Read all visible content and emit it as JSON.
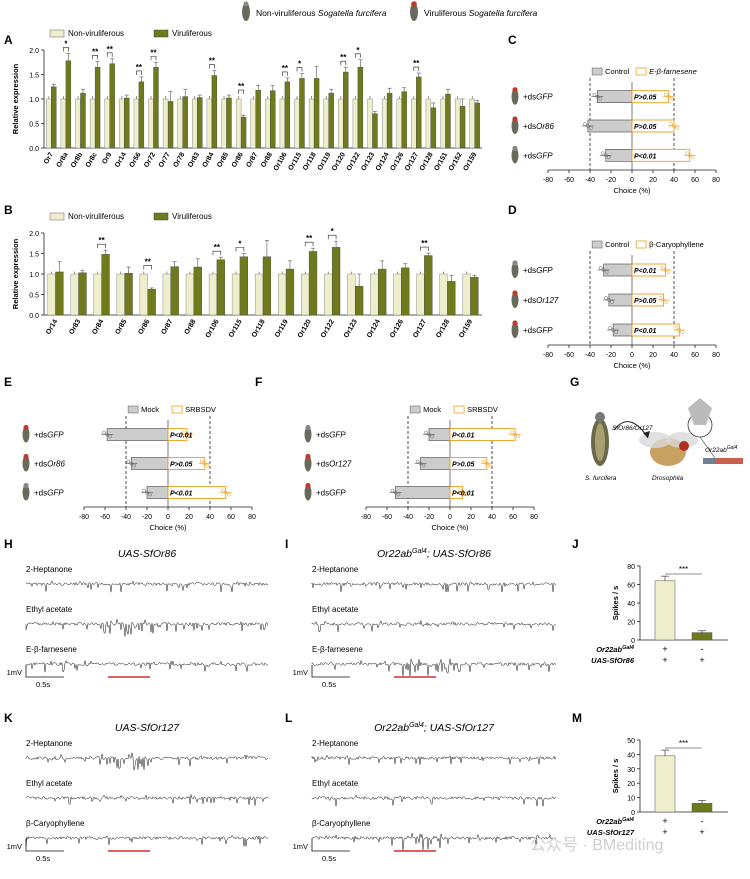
{
  "legend_top": {
    "non_viruliferous": "Non-viruliferous",
    "viruliferous": "Viruliferous",
    "species": "Sogatella furcifera"
  },
  "colors": {
    "light": "#eeeecc",
    "dark": "#6f7a1c",
    "grey": "#cccccc",
    "orange": "#f0a020"
  },
  "panels": {
    "A": "A",
    "B": "B",
    "C": "C",
    "D": "D",
    "E": "E",
    "F": "F",
    "G": "G",
    "H": "H",
    "I": "I",
    "J": "J",
    "K": "K",
    "L": "L",
    "M": "M"
  },
  "chart_data": [
    {
      "id": "A",
      "type": "bar",
      "ylabel": "Relative expression",
      "ylim": [
        0,
        2.0
      ],
      "yticks": [
        "0.0",
        "0.5",
        "1.0",
        "1.5",
        "2.0"
      ],
      "legend": [
        "Non-viruliferous",
        "Viruliferous"
      ],
      "categories": [
        "Or7",
        "Or8a",
        "Or8b",
        "Or8c",
        "Or9",
        "Or14",
        "Or56",
        "Or72",
        "Or77",
        "Or78",
        "Or83",
        "Or84",
        "Or85",
        "Or86",
        "Or87",
        "Or88",
        "Or106",
        "Or115",
        "Or118",
        "Or119",
        "Or120",
        "Or122",
        "Or123",
        "Or124",
        "Or126",
        "Or127",
        "Or128",
        "Or151",
        "Or152",
        "Or159"
      ],
      "series": [
        {
          "name": "Non-viruliferous",
          "values": [
            1,
            1,
            1,
            1,
            1,
            1,
            1,
            1,
            1,
            1,
            1,
            1,
            1,
            1,
            1,
            1,
            1,
            1,
            1,
            1,
            1,
            1,
            1,
            1,
            1,
            1,
            1,
            1,
            1,
            1
          ]
        },
        {
          "name": "Viruliferous",
          "values": [
            1.25,
            1.78,
            1.12,
            1.65,
            1.72,
            1.02,
            1.35,
            1.65,
            0.95,
            1.05,
            1.03,
            1.48,
            1.02,
            0.63,
            1.18,
            1.17,
            1.35,
            1.42,
            1.42,
            1.12,
            1.55,
            1.65,
            0.7,
            1.12,
            1.15,
            1.45,
            0.82,
            1.1,
            0.85,
            0.92
          ]
        }
      ],
      "errors": [
        0.05,
        0.15,
        0.08,
        0.12,
        0.1,
        0.06,
        0.1,
        0.1,
        0.2,
        0.15,
        0.05,
        0.1,
        0.06,
        0.04,
        0.1,
        0.1,
        0.08,
        0.1,
        0.25,
        0.08,
        0.1,
        0.15,
        0.05,
        0.1,
        0.08,
        0.08,
        0.1,
        0.1,
        0.15,
        0.05
      ],
      "significance": [
        {
          "category": "Or8a",
          "label": "*"
        },
        {
          "category": "Or8c",
          "label": "**"
        },
        {
          "category": "Or9",
          "label": "**"
        },
        {
          "category": "Or56",
          "label": "**"
        },
        {
          "category": "Or72",
          "label": "**"
        },
        {
          "category": "Or84",
          "label": "**"
        },
        {
          "category": "Or86",
          "label": "**"
        },
        {
          "category": "Or106",
          "label": "**"
        },
        {
          "category": "Or115",
          "label": "*"
        },
        {
          "category": "Or120",
          "label": "**"
        },
        {
          "category": "Or122",
          "label": "*"
        },
        {
          "category": "Or127",
          "label": "**"
        }
      ]
    },
    {
      "id": "B",
      "type": "bar",
      "ylabel": "Relative expression",
      "ylim": [
        0,
        2.0
      ],
      "yticks": [
        "0.0",
        "0.5",
        "1.0",
        "1.5",
        "2.0"
      ],
      "legend": [
        "Non-viruliferous",
        "Viruliferous"
      ],
      "categories": [
        "Or14",
        "Or83",
        "Or84",
        "Or85",
        "Or86",
        "Or87",
        "Or88",
        "Or106",
        "Or115",
        "Or118",
        "Or119",
        "Or120",
        "Or122",
        "Or123",
        "Or124",
        "Or126",
        "Or127",
        "Or128",
        "Or159"
      ],
      "series": [
        {
          "name": "Non-viruliferous",
          "values": [
            1,
            1,
            1,
            1,
            1,
            1,
            1,
            1,
            1,
            1,
            1,
            1,
            1,
            1,
            1,
            1,
            1,
            1,
            1
          ]
        },
        {
          "name": "Viruliferous",
          "values": [
            1.05,
            1.03,
            1.48,
            1.02,
            0.63,
            1.18,
            1.17,
            1.35,
            1.42,
            1.42,
            1.12,
            1.55,
            1.65,
            0.7,
            1.12,
            1.15,
            1.45,
            0.82,
            0.92
          ]
        }
      ],
      "errors": [
        0.25,
        0.05,
        0.1,
        0.15,
        0.03,
        0.12,
        0.2,
        0.06,
        0.08,
        0.4,
        0.2,
        0.08,
        0.15,
        0.3,
        0.2,
        0.1,
        0.06,
        0.15,
        0.05
      ],
      "significance": [
        {
          "category": "Or84",
          "label": "**"
        },
        {
          "category": "Or86",
          "label": "**"
        },
        {
          "category": "Or106",
          "label": "**"
        },
        {
          "category": "Or115",
          "label": "*"
        },
        {
          "category": "Or120",
          "label": "**"
        },
        {
          "category": "Or122",
          "label": "*"
        },
        {
          "category": "Or127",
          "label": "**"
        }
      ]
    },
    {
      "id": "C",
      "type": "bar",
      "orientation": "horizontal",
      "xlabel": "Choice (%)",
      "xlim": [
        -80,
        80
      ],
      "xticks": [
        "-80",
        "-60",
        "-40",
        "-20",
        "0",
        "20",
        "40",
        "60",
        "80"
      ],
      "legend": [
        "Control",
        "E-β-farnesene"
      ],
      "rows": [
        {
          "label_prefix": "+ds",
          "label_gene": "GFP",
          "left": -33,
          "right": 35,
          "p": "P>0.05"
        },
        {
          "label_prefix": "+ds",
          "label_gene": "Or86",
          "left": -42,
          "right": 40,
          "p": "P>0.05"
        },
        {
          "label_prefix": "+ds",
          "label_gene": "GFP",
          "left": -25,
          "right": 55,
          "p": "P<0.01"
        }
      ],
      "reference_lines": [
        -40,
        40
      ]
    },
    {
      "id": "D",
      "type": "bar",
      "orientation": "horizontal",
      "xlabel": "Choice (%)",
      "xlim": [
        -80,
        80
      ],
      "xticks": [
        "-80",
        "-60",
        "-40",
        "-20",
        "0",
        "20",
        "40",
        "60",
        "80"
      ],
      "legend": [
        "Control",
        "β-Caryophyllene"
      ],
      "rows": [
        {
          "label_prefix": "+ds",
          "label_gene": "GFP",
          "left": -27,
          "right": 32,
          "p": "P<0.01"
        },
        {
          "label_prefix": "+ds",
          "label_gene": "Or127",
          "left": -22,
          "right": 30,
          "p": "P>0.05"
        },
        {
          "label_prefix": "+ds",
          "label_gene": "GFP",
          "left": -18,
          "right": 45,
          "p": "P<0.01"
        }
      ],
      "reference_lines": [
        -40,
        40
      ]
    },
    {
      "id": "E",
      "type": "bar",
      "orientation": "horizontal",
      "xlabel": "Choice (%)",
      "xlim": [
        -80,
        80
      ],
      "xticks": [
        "-80",
        "-60",
        "-40",
        "-20",
        "0",
        "20",
        "40",
        "60",
        "80"
      ],
      "legend": [
        "Mock",
        "SRBSDV"
      ],
      "rows": [
        {
          "label_prefix": "+ds",
          "label_gene": "GFP",
          "left": -58,
          "right": 18,
          "p": "P<0.01"
        },
        {
          "label_prefix": "+ds",
          "label_gene": "Or86",
          "left": -35,
          "right": 35,
          "p": "P>0.05"
        },
        {
          "label_prefix": "+ds",
          "label_gene": "GFP",
          "left": -20,
          "right": 55,
          "p": "P<0.01"
        }
      ],
      "reference_lines": [
        -40,
        40
      ]
    },
    {
      "id": "F",
      "type": "bar",
      "orientation": "horizontal",
      "xlabel": "Choice (%)",
      "xlim": [
        -80,
        80
      ],
      "xticks": [
        "-80",
        "-60",
        "-40",
        "-20",
        "0",
        "20",
        "40",
        "60",
        "80"
      ],
      "legend": [
        "Mock",
        "SRBSDV"
      ],
      "rows": [
        {
          "label_prefix": "+ds",
          "label_gene": "GFP",
          "left": -20,
          "right": 62,
          "p": "P<0.01"
        },
        {
          "label_prefix": "+ds",
          "label_gene": "Or127",
          "left": -28,
          "right": 35,
          "p": "P>0.05"
        },
        {
          "label_prefix": "+ds",
          "label_gene": "GFP",
          "left": -52,
          "right": 12,
          "p": "P<0.01"
        }
      ],
      "reference_lines": [
        -40,
        40
      ]
    },
    {
      "id": "J",
      "type": "bar",
      "ylabel": "Spikes / s",
      "ylim": [
        0,
        80
      ],
      "yticks": [
        "0",
        "20",
        "40",
        "60",
        "80"
      ],
      "values": [
        64,
        8
      ],
      "errors": [
        5,
        2
      ],
      "significance": "***",
      "rows": [
        {
          "label": "Or22ab",
          "sup": "Gal4",
          "marks": [
            "+",
            "-"
          ]
        },
        {
          "label": "UAS-SfOr86",
          "sup": "",
          "marks": [
            "+",
            "+"
          ]
        }
      ]
    },
    {
      "id": "M",
      "type": "bar",
      "ylabel": "Spikes / s",
      "ylim": [
        0,
        50
      ],
      "yticks": [
        "0",
        "10",
        "20",
        "30",
        "40",
        "50"
      ],
      "values": [
        39,
        6
      ],
      "errors": [
        4,
        2
      ],
      "significance": "***",
      "rows": [
        {
          "label": "Or22ab",
          "sup": "Gal4",
          "marks": [
            "+",
            "-"
          ]
        },
        {
          "label": "UAS-SfOr127",
          "sup": "",
          "marks": [
            "+",
            "+"
          ]
        }
      ]
    }
  ],
  "panel_G": {
    "source": "S. furcifera",
    "gene": "SfOr86/Or127",
    "target": "Drosophila",
    "driver": "Or22ab",
    "driver_sup": "Gal4"
  },
  "traces": {
    "H": {
      "title": "UAS-SfOr86",
      "labels": [
        "2-Heptanone",
        "Ethyl acetate",
        "E-β-farnesene"
      ]
    },
    "I": {
      "title_pre": "Or22ab",
      "title_sup": "Gal4",
      "title_post": "; UAS-SfOr86",
      "labels": [
        "2-Heptanone",
        "Ethyl acetate",
        "E-β-farnesene"
      ]
    },
    "K": {
      "title": "UAS-SfOr127",
      "labels": [
        "2-Heptanone",
        "Ethyl acetate",
        "β-Caryophyllene"
      ]
    },
    "L": {
      "title_pre": "Or22ab",
      "title_sup": "Gal4",
      "title_post": "; UAS-SfOr127",
      "labels": [
        "2-Heptanone",
        "Ethyl acetate",
        "β-Caryophyllene"
      ]
    }
  },
  "scale": {
    "mv": "1mV",
    "time": "0.5s"
  },
  "watermark": "公众号 · BMediting"
}
